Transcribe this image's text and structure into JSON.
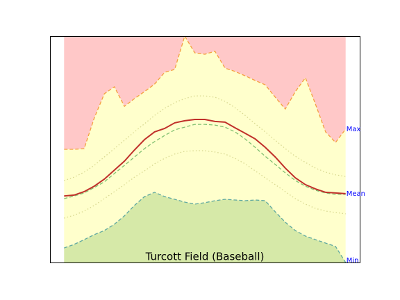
{
  "chart_data": {
    "type": "area_band",
    "title": "Turcott Field (Baseball)",
    "x": [
      0,
      1,
      2,
      3,
      4,
      5,
      6,
      7,
      8,
      9,
      10,
      11,
      12,
      13,
      14,
      15,
      16,
      17,
      18,
      19,
      20,
      21,
      22,
      23,
      24,
      25,
      26,
      27,
      28
    ],
    "xlim": [
      -1.4,
      29.4
    ],
    "ylim": [
      0,
      100
    ],
    "fill_above_color": "#ffc8c8",
    "fill_between_color": "#ffffcc",
    "fill_below_color": "#d6e9a8",
    "label_color": "#0000ff",
    "series": [
      {
        "name": "Max",
        "color": "#f4a040",
        "dash": "dashed",
        "values": [
          50,
          50,
          50.3,
          63.8,
          74.5,
          77.6,
          69,
          72.4,
          75.5,
          78.8,
          84,
          85.3,
          100,
          92.6,
          92,
          93.3,
          85.9,
          84.4,
          82.5,
          80.4,
          78.5,
          73,
          67.8,
          75.5,
          81.6,
          69.9,
          57.7,
          53,
          58.9
        ]
      },
      {
        "name": "Mean",
        "color": "#c0302a",
        "dash": "solid",
        "values": [
          29.4,
          29.8,
          31.3,
          33.7,
          36.8,
          40.8,
          44.8,
          49.7,
          54.3,
          57.7,
          59.2,
          61.7,
          62.6,
          63.2,
          63.2,
          62.3,
          62,
          59.5,
          57.1,
          54.6,
          50.9,
          46.6,
          41.7,
          37.4,
          34.4,
          32.5,
          31,
          30.7,
          30.4
        ]
      },
      {
        "name": "Min",
        "color": "#5fa8a0",
        "dash": "dashed",
        "values": [
          6.4,
          8,
          10.1,
          12.3,
          14.1,
          16.9,
          20.6,
          25.2,
          29.1,
          31,
          29.1,
          27.9,
          26.7,
          25.8,
          26.4,
          27.3,
          27.9,
          27.6,
          27.3,
          27.6,
          27.3,
          22.4,
          17.8,
          14.1,
          11.7,
          10.1,
          8.6,
          7.1,
          0
        ]
      },
      {
        "color": "#80c070",
        "dash": "dashed",
        "values": [
          28.2,
          29.4,
          30.7,
          33.1,
          35.6,
          39.3,
          42.9,
          46.6,
          50.3,
          53.4,
          56.1,
          58.6,
          59.8,
          61,
          61,
          60.7,
          59.8,
          57.7,
          54.6,
          50.9,
          46.9,
          43.3,
          39.6,
          36.2,
          33.7,
          31.9,
          30.7,
          30.1,
          30.1
        ]
      },
      {
        "color": "#d8d890",
        "dash": "dotted",
        "values": [
          36.2,
          37.7,
          39.9,
          42.9,
          46.6,
          50.3,
          54,
          57.7,
          61.3,
          65,
          68.1,
          70.6,
          72.4,
          73.6,
          73.6,
          73,
          71.2,
          68.4,
          65,
          61.3,
          57.7,
          54,
          50.3,
          46.9,
          44.2,
          41.7,
          39.9,
          38.7,
          38
        ]
      },
      {
        "color": "#d8d890",
        "dash": "dotted",
        "values": [
          19.6,
          20.9,
          22.7,
          25.2,
          28.2,
          31.3,
          34.4,
          37.7,
          40.5,
          43.6,
          46,
          47.9,
          49.1,
          49.4,
          49.4,
          48.8,
          47.9,
          46,
          43.6,
          40.5,
          37.4,
          34.4,
          31.3,
          28.2,
          25.8,
          23.9,
          22.7,
          22.1,
          21.5
        ]
      }
    ]
  }
}
